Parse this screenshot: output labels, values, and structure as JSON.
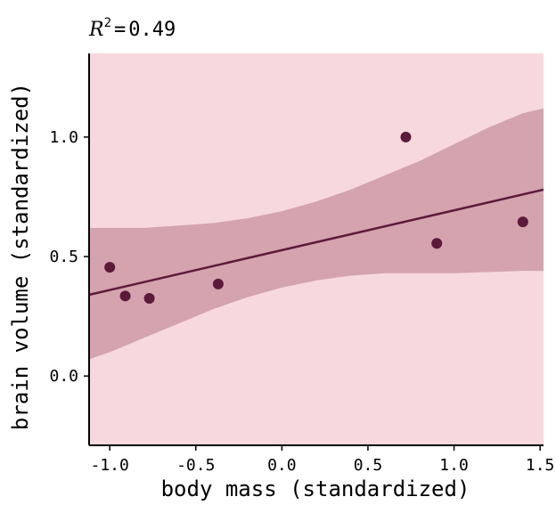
{
  "chart_data": {
    "type": "scatter",
    "title": {
      "symbol": "R",
      "superscript": "2",
      "equals": "=",
      "value": "0.49"
    },
    "xlabel": "body mass (standardized)",
    "ylabel": "brain volume (standardized)",
    "xlim": [
      -1.12,
      1.52
    ],
    "ylim": [
      -0.29,
      1.35
    ],
    "xticks": [
      -1.0,
      -0.5,
      0.0,
      0.5,
      1.0,
      1.5
    ],
    "xtick_labels": [
      "-1.0",
      "-0.5",
      "0.0",
      "0.5",
      "1.0",
      "1.5"
    ],
    "yticks": [
      0.0,
      0.5,
      1.0
    ],
    "ytick_labels": [
      "0.0",
      "0.5",
      "1.0"
    ],
    "points": [
      {
        "x": -1.0,
        "y": 0.455
      },
      {
        "x": -0.91,
        "y": 0.335
      },
      {
        "x": -0.77,
        "y": 0.325
      },
      {
        "x": -0.37,
        "y": 0.385
      },
      {
        "x": 0.72,
        "y": 1.0
      },
      {
        "x": 0.9,
        "y": 0.555
      },
      {
        "x": 1.4,
        "y": 0.645
      }
    ],
    "regression_line": {
      "x": [
        -1.12,
        1.52
      ],
      "y": [
        0.34,
        0.78
      ]
    },
    "mean_interval": {
      "x": [
        -1.12,
        -1.0,
        -0.8,
        -0.6,
        -0.4,
        -0.2,
        0.0,
        0.2,
        0.4,
        0.6,
        0.8,
        1.0,
        1.2,
        1.4,
        1.52
      ],
      "lower": [
        0.07,
        0.1,
        0.16,
        0.22,
        0.28,
        0.33,
        0.37,
        0.4,
        0.42,
        0.43,
        0.43,
        0.43,
        0.435,
        0.44,
        0.44
      ],
      "upper": [
        0.62,
        0.62,
        0.62,
        0.63,
        0.64,
        0.66,
        0.69,
        0.73,
        0.78,
        0.84,
        0.9,
        0.97,
        1.04,
        1.1,
        1.12
      ]
    },
    "prediction_interval": {
      "lower": -0.29,
      "upper": 1.35
    },
    "colors": {
      "prediction_band": "#f7d9dd",
      "mean_band": "#d4a3ae",
      "line": "#5c1a3a",
      "points": "#5c1a3a",
      "axes": "#000000",
      "text": "#000000"
    }
  }
}
